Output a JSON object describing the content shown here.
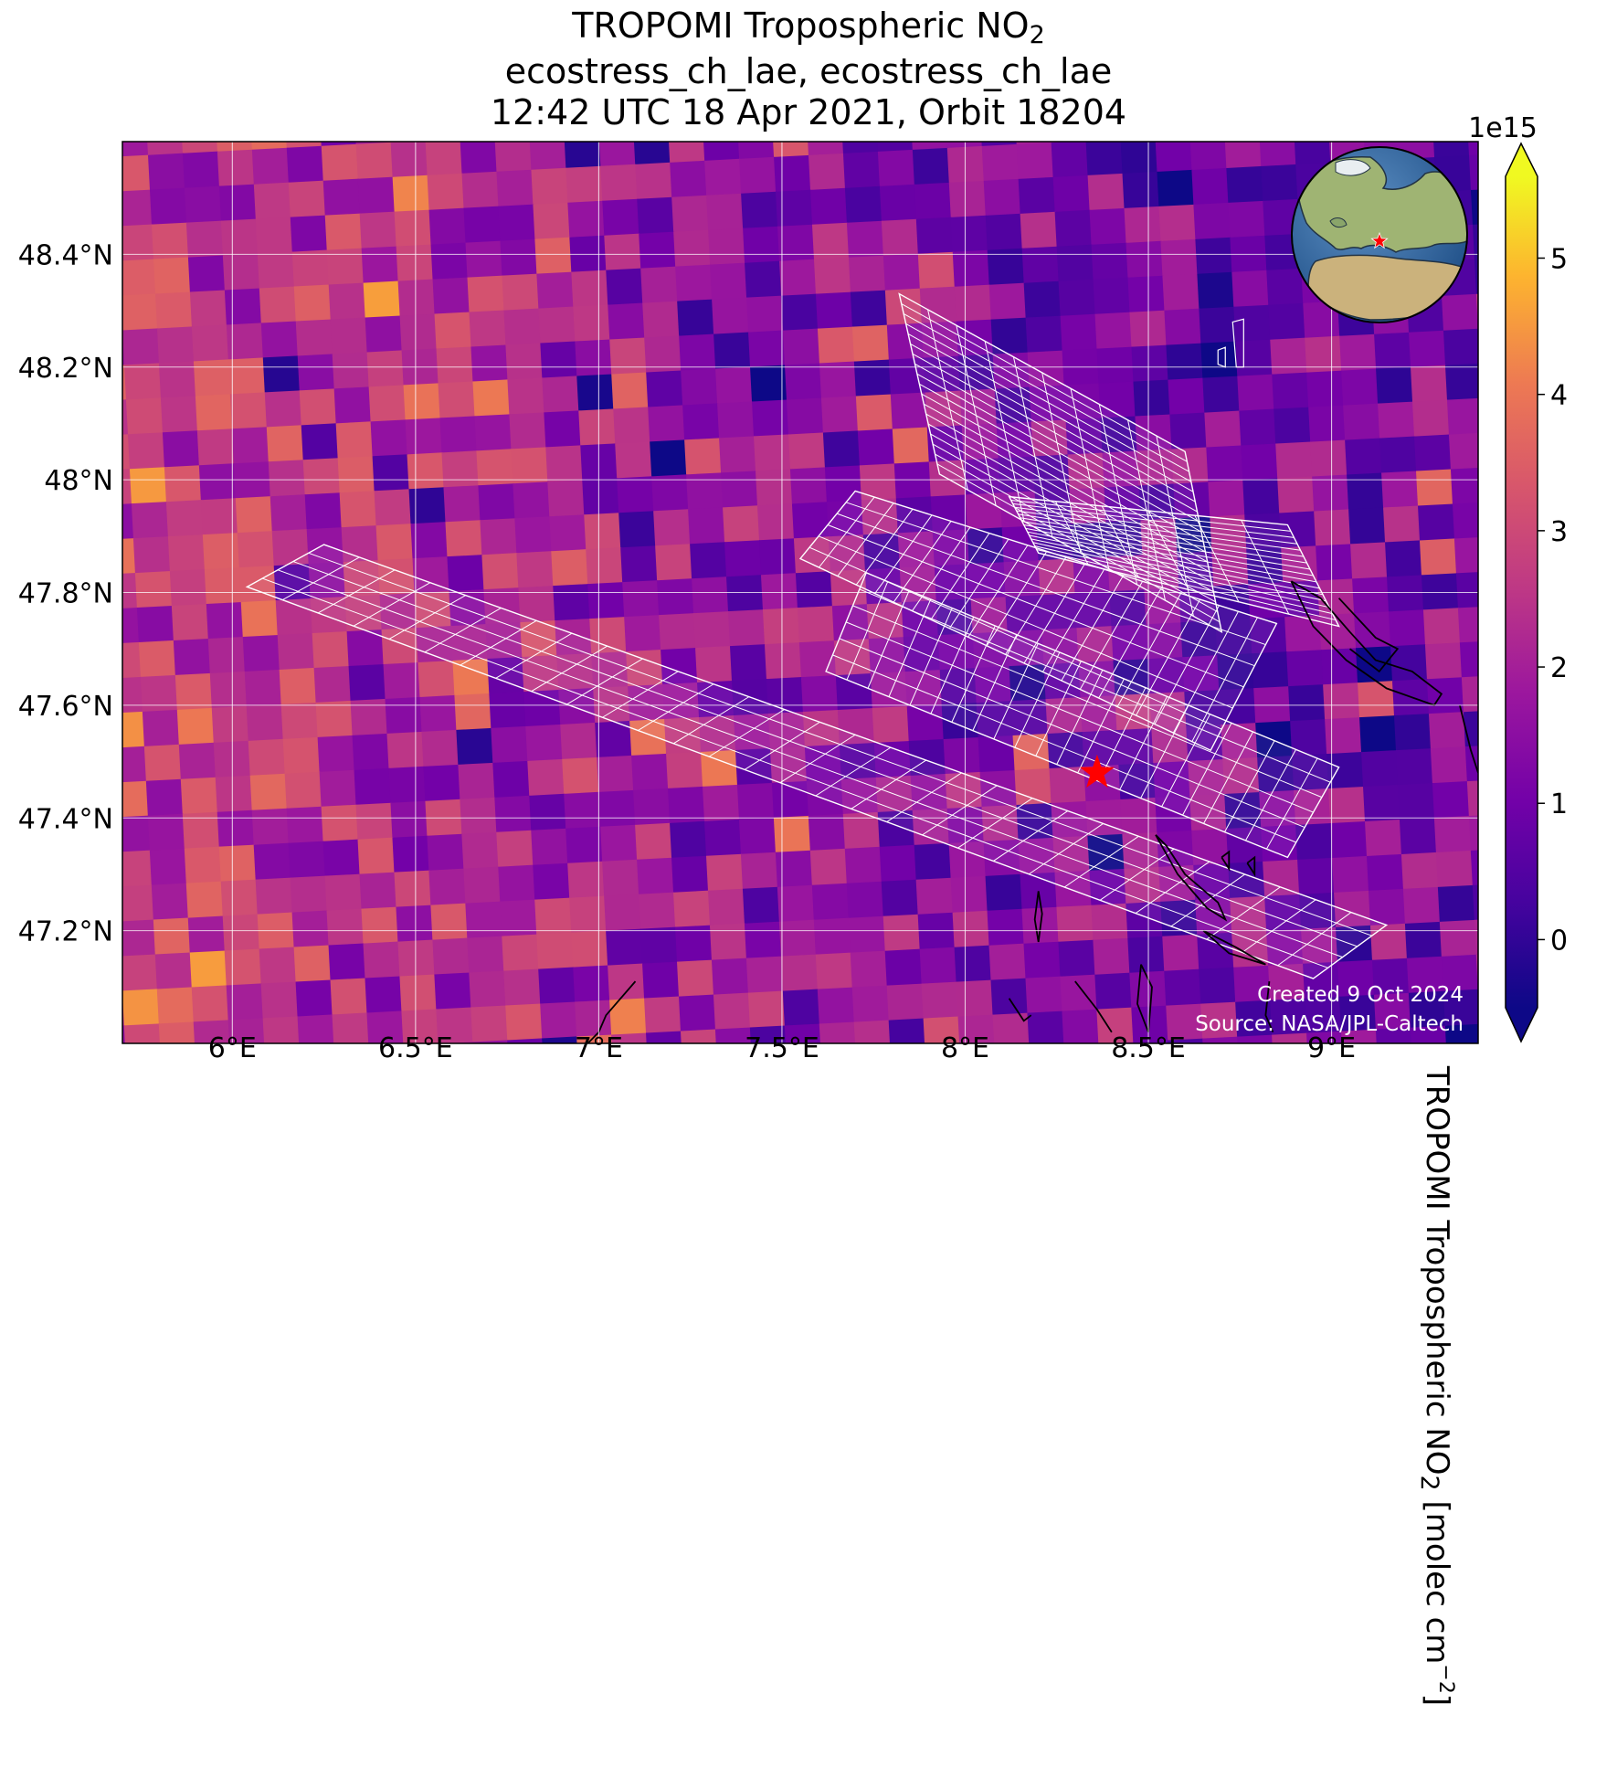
{
  "title": {
    "line1_prefix": "TROPOMI Tropospheric NO",
    "line1_sub": "2",
    "line2": "ecostress_ch_lae, ecostress_ch_lae",
    "line3": "12:42 UTC 18 Apr 2021, Orbit 18204"
  },
  "map": {
    "lon_range": [
      5.7,
      9.4
    ],
    "lat_range": [
      47.0,
      48.6
    ],
    "lon_ticks": [
      {
        "value": 6.0,
        "label": "6°E"
      },
      {
        "value": 6.5,
        "label": "6.5°E"
      },
      {
        "value": 7.0,
        "label": "7°E"
      },
      {
        "value": 7.5,
        "label": "7.5°E"
      },
      {
        "value": 8.0,
        "label": "8°E"
      },
      {
        "value": 8.5,
        "label": "8.5°E"
      },
      {
        "value": 9.0,
        "label": "9°E"
      }
    ],
    "lat_ticks": [
      {
        "value": 47.2,
        "label": "47.2°N"
      },
      {
        "value": 47.4,
        "label": "47.4°N"
      },
      {
        "value": 47.6,
        "label": "47.6°N"
      },
      {
        "value": 47.8,
        "label": "47.8°N"
      },
      {
        "value": 48.0,
        "label": "48°N"
      },
      {
        "value": 48.2,
        "label": "48.2°N"
      },
      {
        "value": 48.4,
        "label": "48.4°N"
      }
    ],
    "gridlines": true,
    "colormap": "plasma",
    "target_marker": {
      "lon": 8.36,
      "lat": 47.48,
      "color": "#ff0000"
    },
    "swath_outline_color": "#ffffff",
    "coastline_color": "#000000",
    "notes": {
      "created": "Created 9 Oct 2024",
      "source": "Source: NASA/JPL-Caltech"
    }
  },
  "colorbar": {
    "min": -0.5,
    "max": 5.6,
    "ticks": [
      {
        "value": 0,
        "label": "0"
      },
      {
        "value": 1,
        "label": "1"
      },
      {
        "value": 2,
        "label": "2"
      },
      {
        "value": 3,
        "label": "3"
      },
      {
        "value": 4,
        "label": "4"
      },
      {
        "value": 5,
        "label": "5"
      }
    ],
    "offset_label": "1e15",
    "label_prefix": "TROPOMI Tropospheric NO",
    "label_sub": "2",
    "label_middle": " [molec cm",
    "label_sup": "−2",
    "label_suffix": "]"
  },
  "inset_globe": {
    "marker_color": "#ff0000"
  }
}
